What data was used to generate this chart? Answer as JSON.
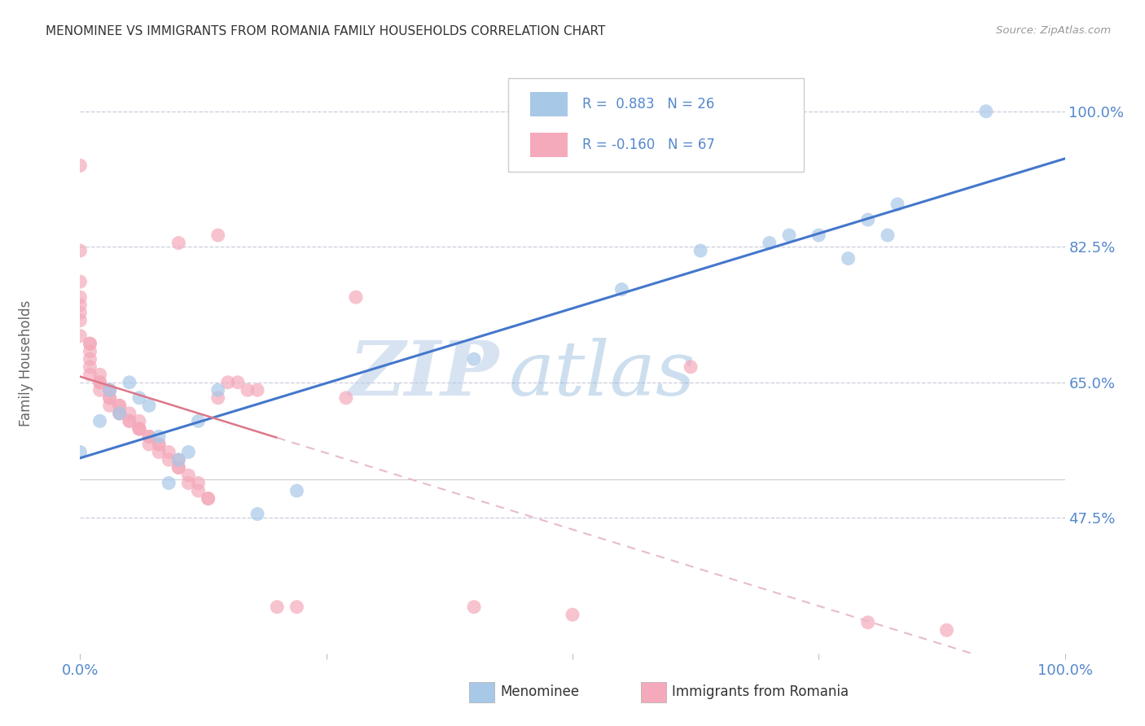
{
  "title": "MENOMINEE VS IMMIGRANTS FROM ROMANIA FAMILY HOUSEHOLDS CORRELATION CHART",
  "source": "Source: ZipAtlas.com",
  "ylabel": "Family Households",
  "xlim": [
    0.0,
    1.0
  ],
  "ylim": [
    0.3,
    1.05
  ],
  "yticks": [
    0.475,
    0.65,
    0.825,
    1.0
  ],
  "ytick_labels": [
    "47.5%",
    "65.0%",
    "82.5%",
    "100.0%"
  ],
  "menominee_R": 0.883,
  "menominee_N": 26,
  "romania_R": -0.16,
  "romania_N": 67,
  "blue_color": "#A8C8E8",
  "pink_color": "#F4AABB",
  "trend_blue": "#4477CC",
  "trend_pink": "#DD7788",
  "trend_pink_dashed": "#E8BBCC",
  "watermark_zip_color": "#C8D8F0",
  "watermark_atlas_color": "#C8D8E8",
  "axis_color": "#5588CC",
  "grid_color": "#CCCCDD",
  "title_color": "#333333",
  "menominee_x": [
    0.0,
    0.02,
    0.03,
    0.04,
    0.05,
    0.06,
    0.07,
    0.08,
    0.09,
    0.1,
    0.11,
    0.12,
    0.14,
    0.18,
    0.22,
    0.4,
    0.55,
    0.63,
    0.7,
    0.72,
    0.75,
    0.78,
    0.8,
    0.82,
    0.83,
    0.92
  ],
  "menominee_y": [
    0.56,
    0.6,
    0.64,
    0.61,
    0.65,
    0.63,
    0.62,
    0.58,
    0.52,
    0.55,
    0.56,
    0.6,
    0.64,
    0.48,
    0.51,
    0.68,
    0.77,
    0.82,
    0.83,
    0.84,
    0.84,
    0.81,
    0.86,
    0.84,
    0.88,
    1.0
  ],
  "romania_x": [
    0.0,
    0.0,
    0.0,
    0.0,
    0.0,
    0.0,
    0.0,
    0.0,
    0.01,
    0.01,
    0.01,
    0.01,
    0.01,
    0.01,
    0.02,
    0.02,
    0.02,
    0.02,
    0.03,
    0.03,
    0.03,
    0.03,
    0.03,
    0.04,
    0.04,
    0.04,
    0.04,
    0.05,
    0.05,
    0.05,
    0.06,
    0.06,
    0.06,
    0.06,
    0.07,
    0.07,
    0.07,
    0.08,
    0.08,
    0.08,
    0.09,
    0.09,
    0.1,
    0.1,
    0.1,
    0.1,
    0.11,
    0.11,
    0.12,
    0.12,
    0.13,
    0.13,
    0.14,
    0.14,
    0.15,
    0.16,
    0.17,
    0.18,
    0.2,
    0.22,
    0.27,
    0.28,
    0.4,
    0.5,
    0.62,
    0.8,
    0.88
  ],
  "romania_y": [
    0.93,
    0.82,
    0.78,
    0.76,
    0.75,
    0.74,
    0.73,
    0.71,
    0.7,
    0.7,
    0.69,
    0.68,
    0.67,
    0.66,
    0.66,
    0.65,
    0.65,
    0.64,
    0.64,
    0.64,
    0.63,
    0.63,
    0.62,
    0.62,
    0.62,
    0.61,
    0.61,
    0.61,
    0.6,
    0.6,
    0.6,
    0.59,
    0.59,
    0.59,
    0.58,
    0.58,
    0.57,
    0.57,
    0.57,
    0.56,
    0.56,
    0.55,
    0.55,
    0.54,
    0.54,
    0.83,
    0.53,
    0.52,
    0.52,
    0.51,
    0.5,
    0.5,
    0.84,
    0.63,
    0.65,
    0.65,
    0.64,
    0.64,
    0.36,
    0.36,
    0.63,
    0.76,
    0.36,
    0.35,
    0.67,
    0.34,
    0.33
  ]
}
